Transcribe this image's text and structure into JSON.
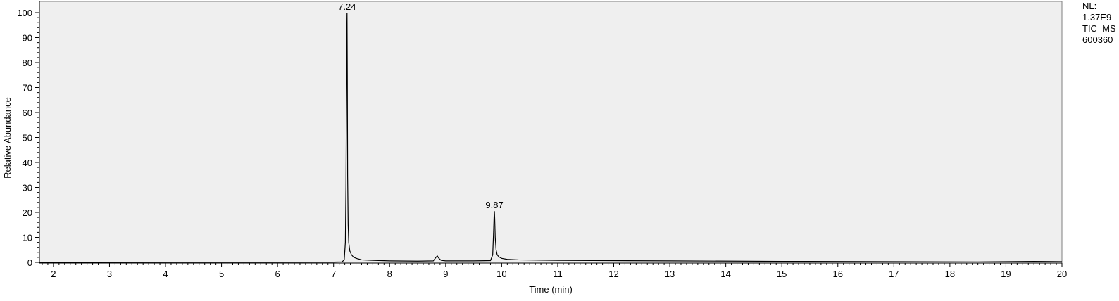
{
  "chart_data": {
    "type": "line",
    "xlabel": "Time (min)",
    "ylabel": "Relative Abundance",
    "xlim": [
      1.75,
      20.0
    ],
    "ylim": [
      0,
      100
    ],
    "x_ticks": [
      "2",
      "3",
      "4",
      "5",
      "6",
      "7",
      "8",
      "9",
      "10",
      "11",
      "12",
      "13",
      "14",
      "15",
      "16",
      "17",
      "18",
      "19",
      "20"
    ],
    "y_ticks": [
      "0",
      "10",
      "20",
      "30",
      "40",
      "50",
      "60",
      "70",
      "80",
      "90",
      "100"
    ],
    "grid": false,
    "series": [
      {
        "x": [
          1.75,
          7.0,
          7.15,
          7.19,
          7.21,
          7.22,
          7.23,
          7.235,
          7.24,
          7.245,
          7.25,
          7.26,
          7.27,
          7.29,
          7.32,
          7.36,
          7.42,
          7.5,
          7.7,
          8.0,
          8.5,
          8.78,
          8.82,
          8.85,
          8.88,
          8.92,
          9.0,
          9.5,
          9.8,
          9.84,
          9.855,
          9.865,
          9.87,
          9.875,
          9.885,
          9.9,
          9.92,
          9.95,
          10.0,
          10.1,
          10.3,
          11.0,
          13.0,
          15.0,
          17.0,
          18.5,
          19.0,
          19.5,
          20.0
        ],
        "y": [
          0.0,
          0.1,
          0.2,
          1.0,
          8.0,
          30.0,
          70.0,
          92.0,
          100.0,
          75.0,
          35.0,
          15.0,
          8.0,
          4.5,
          3.0,
          2.0,
          1.5,
          1.0,
          0.8,
          0.6,
          0.5,
          0.6,
          1.8,
          2.6,
          1.6,
          0.8,
          0.6,
          0.6,
          0.7,
          3.0,
          12.0,
          19.0,
          20.5,
          18.0,
          10.0,
          5.0,
          3.0,
          2.2,
          1.6,
          1.2,
          1.0,
          0.8,
          0.6,
          0.4,
          0.3,
          0.2,
          0.3,
          0.4,
          0.3
        ]
      }
    ],
    "peak_labels": [
      {
        "x": 7.24,
        "y": 100,
        "label": "7.24"
      },
      {
        "x": 9.87,
        "y": 20.5,
        "label": "9.87"
      }
    ]
  },
  "normalization": {
    "nl_label": "NL:",
    "nl_value": "1.37E9",
    "trace_type": "TIC  MS",
    "sample_id": "600360"
  },
  "colors": {
    "plot_background": "#efefef",
    "trace": "#000000",
    "axis": "#000000"
  }
}
